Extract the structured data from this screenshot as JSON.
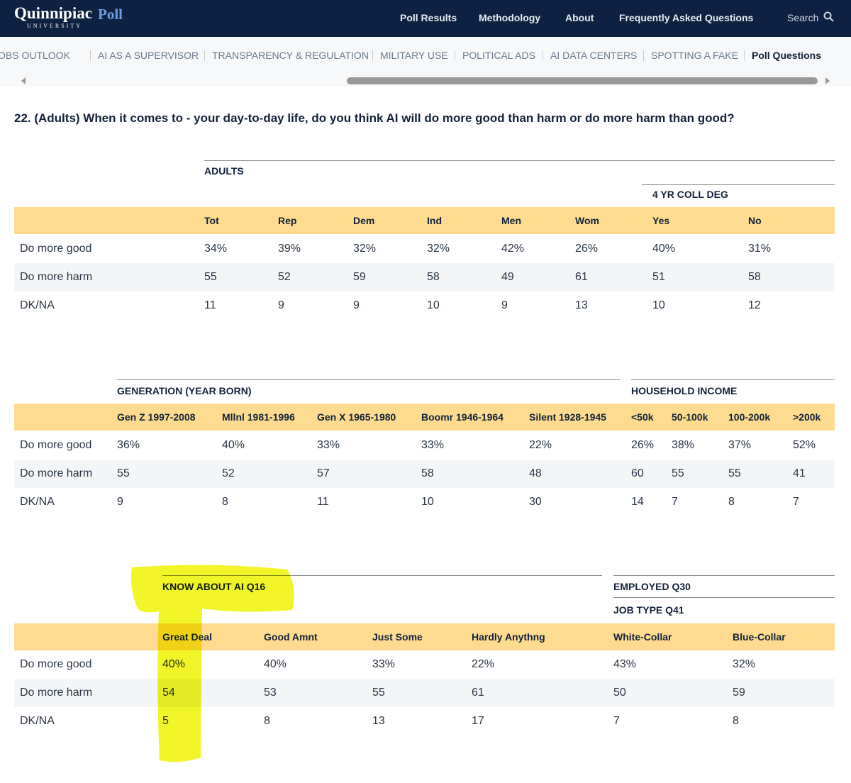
{
  "header": {
    "logo": "Quinnipiac",
    "logo_sub": "UNIVERSITY",
    "logo_poll": "Poll",
    "nav": [
      "Poll Results",
      "Methodology",
      "About",
      "Frequently Asked Questions"
    ],
    "search": "Search"
  },
  "tabs": [
    "JOBS OUTLOOK",
    "AI AS A SUPERVISOR",
    "TRANSPARENCY & REGULATION",
    "MILITARY USE",
    "POLITICAL ADS",
    "AI DATA CENTERS",
    "SPOTTING A FAKE",
    "Poll Questions"
  ],
  "question": "22. (Adults) When it comes to - your day-to-day life, do you think AI will do more good than harm or do more harm than good?",
  "tables": [
    {
      "groups": [
        "ADULTS",
        "4 YR COLL DEG"
      ],
      "columns": [
        "Tot",
        "Rep",
        "Dem",
        "Ind",
        "Men",
        "Wom",
        "Yes",
        "No"
      ],
      "rows": [
        {
          "label": "Do more good",
          "values": [
            "34%",
            "39%",
            "32%",
            "32%",
            "42%",
            "26%",
            "40%",
            "31%"
          ]
        },
        {
          "label": "Do more harm",
          "values": [
            "55",
            "52",
            "59",
            "58",
            "49",
            "61",
            "51",
            "58"
          ]
        },
        {
          "label": "DK/NA",
          "values": [
            "11",
            "9",
            "9",
            "10",
            "9",
            "13",
            "10",
            "12"
          ]
        }
      ]
    },
    {
      "groups": [
        "GENERATION (YEAR BORN)",
        "HOUSEHOLD INCOME"
      ],
      "columns": [
        "Gen Z 1997-2008",
        "Mllnl 1981-1996",
        "Gen X 1965-1980",
        "Boomr 1946-1964",
        "Silent 1928-1945",
        "<50k",
        "50-100k",
        "100-200k",
        ">200k"
      ],
      "rows": [
        {
          "label": "Do more good",
          "values": [
            "36%",
            "40%",
            "33%",
            "33%",
            "22%",
            "26%",
            "38%",
            "37%",
            "52%"
          ]
        },
        {
          "label": "Do more harm",
          "values": [
            "55",
            "52",
            "57",
            "58",
            "48",
            "60",
            "55",
            "55",
            "41"
          ]
        },
        {
          "label": "DK/NA",
          "values": [
            "9",
            "8",
            "11",
            "10",
            "30",
            "14",
            "7",
            "8",
            "7"
          ]
        }
      ]
    },
    {
      "groups": [
        "KNOW ABOUT AI Q16",
        "EMPLOYED Q30",
        "JOB TYPE Q41"
      ],
      "columns": [
        "Great Deal",
        "Good Amnt",
        "Just Some",
        "Hardly Anythng",
        "White-Collar",
        "Blue-Collar"
      ],
      "rows": [
        {
          "label": "Do more good",
          "values": [
            "40%",
            "40%",
            "33%",
            "22%",
            "43%",
            "32%"
          ]
        },
        {
          "label": "Do more harm",
          "values": [
            "54",
            "53",
            "55",
            "61",
            "50",
            "59"
          ]
        },
        {
          "label": "DK/NA",
          "values": [
            "5",
            "8",
            "13",
            "17",
            "7",
            "8"
          ]
        }
      ]
    }
  ]
}
